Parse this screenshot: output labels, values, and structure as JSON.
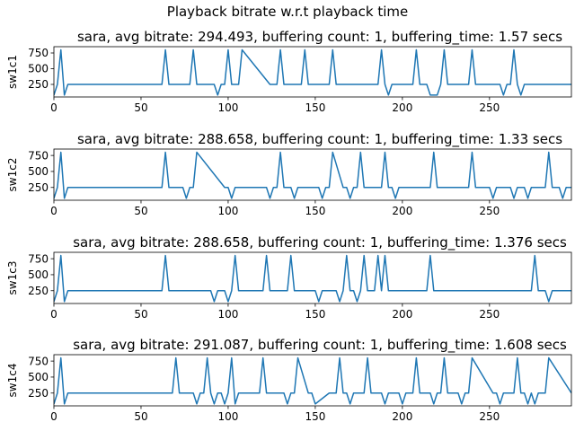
{
  "figure": {
    "suptitle": "Playback bitrate w.r.t playback time"
  },
  "style": {
    "line_color": "#1f77b4",
    "axis_color": "#000000",
    "background": "#ffffff"
  },
  "chart_data": [
    {
      "type": "line",
      "title": "sara, avg bitrate: 294.493, buffering count: 1, buffering_time: 1.57 secs",
      "ylabel": "sw1c1",
      "xlabel": "",
      "xlim": [
        0,
        297
      ],
      "ylim": [
        50,
        850
      ],
      "xticks": [
        0,
        50,
        100,
        150,
        200,
        250
      ],
      "yticks": [
        250,
        500,
        750
      ],
      "grid": false,
      "series": [
        {
          "x": [
            0,
            2,
            4,
            6,
            8,
            62,
            64,
            66,
            78,
            80,
            82,
            90,
            92,
            94,
            96,
            98,
            100,
            102,
            104,
            106,
            108,
            124,
            126,
            128,
            130,
            132,
            134,
            142,
            144,
            146,
            156,
            158,
            160,
            162,
            184,
            186,
            188,
            190,
            192,
            194,
            204,
            206,
            208,
            210,
            212,
            214,
            216,
            218,
            220,
            222,
            224,
            226,
            228,
            230,
            232,
            234,
            236,
            238,
            240,
            242,
            244,
            246,
            256,
            258,
            260,
            262,
            264,
            266,
            268,
            270,
            272,
            297
          ],
          "y": [
            80,
            250,
            800,
            80,
            250,
            250,
            800,
            250,
            250,
            800,
            250,
            250,
            250,
            80,
            250,
            250,
            800,
            250,
            250,
            250,
            800,
            250,
            250,
            250,
            800,
            250,
            250,
            250,
            800,
            250,
            250,
            250,
            800,
            250,
            250,
            250,
            800,
            250,
            80,
            250,
            250,
            250,
            800,
            250,
            250,
            250,
            80,
            80,
            80,
            250,
            800,
            250,
            250,
            250,
            250,
            250,
            250,
            250,
            800,
            250,
            250,
            250,
            250,
            80,
            250,
            250,
            800,
            250,
            80,
            250,
            250,
            250
          ]
        }
      ]
    },
    {
      "type": "line",
      "title": "sara, avg bitrate: 288.658, buffering count: 1, buffering_time: 1.33 secs",
      "ylabel": "sw1c2",
      "xlabel": "",
      "xlim": [
        0,
        297
      ],
      "ylim": [
        50,
        850
      ],
      "xticks": [
        0,
        50,
        100,
        150,
        200,
        250
      ],
      "yticks": [
        250,
        500,
        750
      ],
      "grid": false,
      "series": [
        {
          "x": [
            0,
            2,
            4,
            6,
            8,
            62,
            64,
            66,
            74,
            76,
            78,
            80,
            82,
            98,
            100,
            102,
            104,
            122,
            124,
            126,
            128,
            130,
            132,
            134,
            136,
            138,
            140,
            142,
            144,
            150,
            152,
            154,
            156,
            158,
            160,
            166,
            168,
            170,
            172,
            174,
            176,
            178,
            180,
            186,
            188,
            190,
            192,
            194,
            196,
            198,
            214,
            216,
            218,
            220,
            234,
            236,
            238,
            240,
            242,
            244,
            250,
            252,
            254,
            256,
            258,
            260,
            262,
            264,
            266,
            268,
            270,
            272,
            274,
            280,
            282,
            284,
            286,
            288,
            290,
            292,
            294,
            297
          ],
          "y": [
            80,
            250,
            800,
            80,
            250,
            250,
            800,
            250,
            250,
            80,
            250,
            250,
            800,
            250,
            250,
            80,
            250,
            250,
            80,
            250,
            250,
            800,
            250,
            250,
            250,
            80,
            250,
            250,
            250,
            250,
            250,
            80,
            250,
            250,
            800,
            250,
            250,
            80,
            250,
            250,
            800,
            250,
            250,
            250,
            250,
            800,
            250,
            250,
            80,
            250,
            250,
            250,
            800,
            250,
            250,
            250,
            250,
            800,
            250,
            250,
            250,
            80,
            250,
            250,
            250,
            250,
            250,
            80,
            250,
            250,
            250,
            80,
            250,
            250,
            250,
            800,
            250,
            250,
            250,
            80,
            250,
            250
          ]
        }
      ]
    },
    {
      "type": "line",
      "title": "sara, avg bitrate: 288.658, buffering count: 1, buffering_time: 1.376 secs",
      "ylabel": "sw1c3",
      "xlabel": "",
      "xlim": [
        0,
        297
      ],
      "ylim": [
        50,
        850
      ],
      "xticks": [
        0,
        50,
        100,
        150,
        200,
        250
      ],
      "yticks": [
        250,
        500,
        750
      ],
      "grid": false,
      "series": [
        {
          "x": [
            0,
            2,
            4,
            6,
            8,
            62,
            64,
            66,
            90,
            92,
            94,
            96,
            98,
            100,
            102,
            104,
            106,
            108,
            120,
            122,
            124,
            134,
            136,
            138,
            140,
            150,
            152,
            154,
            156,
            158,
            160,
            162,
            164,
            166,
            168,
            170,
            172,
            174,
            176,
            178,
            180,
            182,
            184,
            186,
            188,
            190,
            192,
            210,
            212,
            214,
            216,
            218,
            220,
            222,
            224,
            226,
            228,
            230,
            262,
            264,
            266,
            268,
            270,
            272,
            274,
            276,
            278,
            280,
            282,
            284,
            286,
            288,
            290,
            292,
            294,
            297
          ],
          "y": [
            80,
            250,
            800,
            80,
            250,
            250,
            800,
            250,
            250,
            80,
            250,
            250,
            250,
            80,
            250,
            800,
            250,
            250,
            250,
            800,
            250,
            250,
            800,
            250,
            250,
            250,
            80,
            250,
            250,
            250,
            250,
            250,
            80,
            250,
            800,
            250,
            250,
            80,
            250,
            800,
            250,
            250,
            250,
            800,
            250,
            800,
            250,
            250,
            250,
            250,
            800,
            250,
            250,
            250,
            250,
            250,
            250,
            250,
            250,
            250,
            250,
            250,
            250,
            250,
            250,
            800,
            250,
            250,
            250,
            80,
            250,
            250,
            250,
            250,
            250,
            250
          ]
        }
      ]
    },
    {
      "type": "line",
      "title": "sara, avg bitrate: 291.087, buffering count: 1, buffering_time: 1.608 secs",
      "ylabel": "sw1c4",
      "xlabel": "",
      "xlim": [
        0,
        297
      ],
      "ylim": [
        50,
        850
      ],
      "xticks": [
        0,
        50,
        100,
        150,
        200,
        250
      ],
      "yticks": [
        250,
        500,
        750
      ],
      "grid": false,
      "series": [
        {
          "x": [
            0,
            2,
            4,
            6,
            8,
            66,
            68,
            70,
            72,
            78,
            80,
            82,
            84,
            86,
            88,
            90,
            92,
            94,
            96,
            98,
            100,
            102,
            104,
            106,
            108,
            110,
            118,
            120,
            122,
            132,
            134,
            136,
            138,
            140,
            146,
            148,
            150,
            158,
            160,
            162,
            164,
            166,
            168,
            170,
            172,
            176,
            178,
            180,
            182,
            184,
            186,
            188,
            190,
            192,
            194,
            196,
            198,
            200,
            202,
            206,
            208,
            210,
            212,
            214,
            216,
            218,
            220,
            222,
            224,
            226,
            228,
            230,
            232,
            234,
            236,
            238,
            240,
            252,
            254,
            256,
            258,
            260,
            262,
            264,
            266,
            268,
            270,
            272,
            274,
            276,
            278,
            280,
            282,
            284,
            297
          ],
          "y": [
            80,
            250,
            800,
            80,
            250,
            250,
            250,
            800,
            250,
            250,
            250,
            80,
            250,
            250,
            800,
            250,
            80,
            250,
            250,
            80,
            250,
            800,
            80,
            250,
            250,
            250,
            250,
            800,
            250,
            250,
            80,
            250,
            250,
            800,
            250,
            250,
            80,
            250,
            250,
            250,
            800,
            250,
            250,
            80,
            250,
            250,
            250,
            800,
            250,
            250,
            250,
            250,
            80,
            250,
            250,
            250,
            250,
            80,
            250,
            250,
            800,
            250,
            250,
            250,
            250,
            80,
            250,
            250,
            800,
            250,
            250,
            250,
            250,
            80,
            250,
            250,
            800,
            250,
            250,
            80,
            250,
            250,
            250,
            250,
            800,
            250,
            250,
            80,
            250,
            80,
            250,
            250,
            250,
            800,
            250
          ]
        }
      ]
    }
  ]
}
